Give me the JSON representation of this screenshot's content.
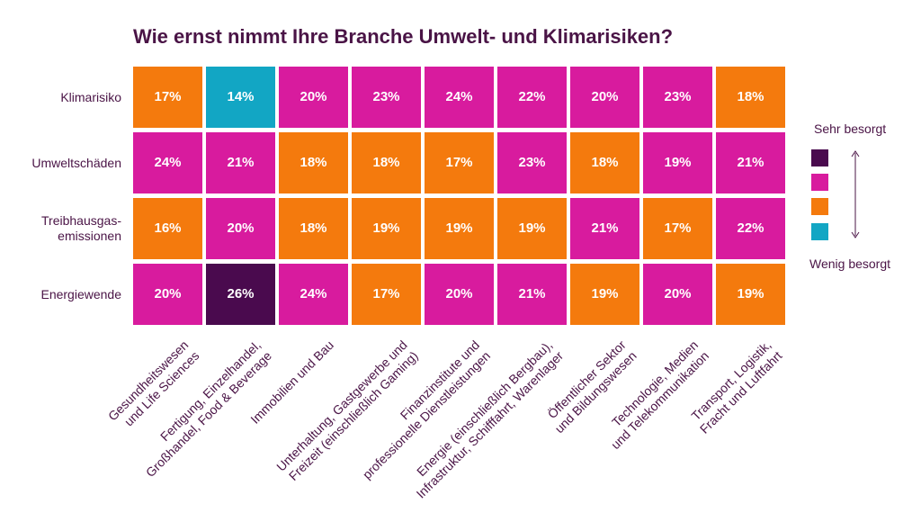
{
  "chart_data": {
    "type": "heatmap",
    "title": "Wie ernst nimmt Ihre Branche Umwelt- und Klimarisiken?",
    "rows": [
      "Klimarisiko",
      "Umweltschäden",
      "Treibhausgas-\nemissionen",
      "Energiewende"
    ],
    "columns": [
      "Gesundheitswesen\nund Life Sciences",
      "Fertigung, Einzelhandel,\nGroßhandel, Food & Beverage",
      "Immobilien und Bau",
      "Unterhaltung, Gastgewerbe und\nFreizeit (einschließlich Gaming)",
      "Finanzinstitute und\nprofessionelle Dienstleistungen",
      "Energie (einschließlich Bergbau),\nInfrastruktur, Schifffahrt, Warenlager",
      "Öffentlicher Sektor\nund Bildungswesen",
      "Technologie, Medien\nund Telekommunikation",
      "Transport, Logistik,\nFracht und Luftfahrt"
    ],
    "values": [
      [
        17,
        14,
        20,
        23,
        24,
        22,
        20,
        23,
        18
      ],
      [
        24,
        21,
        18,
        18,
        17,
        23,
        18,
        19,
        21
      ],
      [
        16,
        20,
        18,
        19,
        19,
        19,
        21,
        17,
        22
      ],
      [
        20,
        26,
        24,
        17,
        20,
        21,
        19,
        20,
        19
      ]
    ],
    "levels": [
      [
        2,
        3,
        1,
        1,
        1,
        1,
        1,
        1,
        2
      ],
      [
        1,
        1,
        2,
        2,
        2,
        1,
        2,
        1,
        1
      ],
      [
        2,
        1,
        2,
        2,
        2,
        2,
        1,
        2,
        1
      ],
      [
        1,
        0,
        1,
        2,
        1,
        1,
        2,
        1,
        2
      ]
    ],
    "value_suffix": "%",
    "legend": {
      "top_label": "Sehr besorgt",
      "bottom_label": "Wenig besorgt",
      "colors": [
        "#4a0a4e",
        "#d81b9e",
        "#f47a0d",
        "#12a6c4"
      ]
    },
    "colors": {
      "text_dark": "#4a1446",
      "cell_text": "#ffffff"
    }
  }
}
